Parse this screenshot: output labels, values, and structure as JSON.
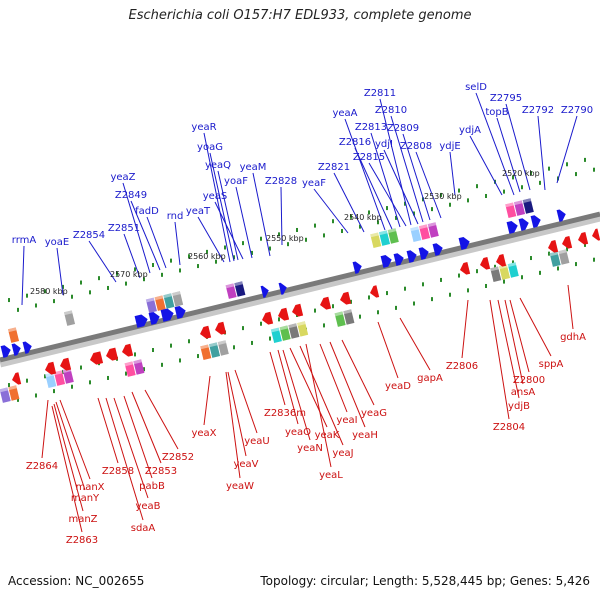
{
  "title": "Escherichia coli O157:H7 EDL933, complete genome",
  "footer": {
    "accession": "Accession: NC_002655",
    "summary": "Topology: circular; Length: 5,528,445 bp; Genes: 5,426"
  },
  "colors": {
    "axis": "#7a7a7a",
    "forward_label": "#1a1acc",
    "reverse_label": "#cc1111",
    "forward_gene": "#1414e6",
    "reverse_gene": "#e61414",
    "tick": "#2a8a2a"
  },
  "scale_labels": [
    "2580 kbp",
    "2570 kbp",
    "2560 kbp",
    "2550 kbp",
    "2540 kbp",
    "2530 kbp",
    "2520 kbp"
  ],
  "top_labels": [
    "rrmA",
    "yoaE",
    "Z2854",
    "Z2851",
    "yeaZ",
    "Z2849",
    "fadD",
    "rnd",
    "yeaR",
    "yoaG",
    "yeaQ",
    "yeaS",
    "yeaT",
    "yoaF",
    "yeaM",
    "Z2828",
    "yeaF",
    "Z2821",
    "yeaA",
    "Z2816",
    "Z2813",
    "Z2815",
    "Z2811",
    "ydjI",
    "Z2810",
    "Z2809",
    "Z2808",
    "ydjE",
    "ydjA",
    "selD",
    "topB",
    "Z2795",
    "Z2792",
    "Z2790"
  ],
  "bottom_labels": [
    "Z2864",
    "manX",
    "manY",
    "manZ",
    "Z2863",
    "Z2858",
    "yeaB",
    "pabB",
    "sdaA",
    "Z2853",
    "Z2852",
    "yeaX",
    "yeaW",
    "yeaV",
    "yeaU",
    "Z2836m",
    "yeaO",
    "yeaN",
    "yeaK",
    "yeaJ",
    "yeaL",
    "yeaI",
    "yeaH",
    "yeaG",
    "yeaD",
    "gapA",
    "Z2806",
    "Z2804",
    "ydjB",
    "ansA",
    "Z2800",
    "sppA",
    "gdhA"
  ]
}
